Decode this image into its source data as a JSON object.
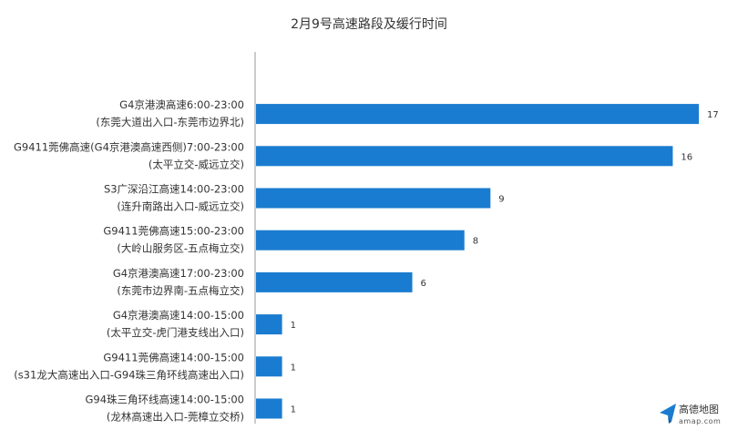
{
  "chart_data": {
    "type": "bar",
    "orientation": "horizontal",
    "title": "2月9号高速路段及缓行时间",
    "categories": [
      [
        "G4京港澳高速6:00-23:00",
        "(东莞大道出入口-东莞市边界北)"
      ],
      [
        "G9411莞佛高速(G4京港澳高速西侧)7:00-23:00",
        "(太平立交-威远立交)"
      ],
      [
        "S3广深沿江高速14:00-23:00",
        "(连升南路出入口-威远立交)"
      ],
      [
        "G9411莞佛高速15:00-23:00",
        "(大岭山服务区-五点梅立交)"
      ],
      [
        "G4京港澳高速17:00-23:00",
        "(东莞市边界南-五点梅立交)"
      ],
      [
        "G4京港澳高速14:00-15:00",
        "(太平立交-虎门港支线出入口)"
      ],
      [
        "G9411莞佛高速14:00-15:00",
        "(s31龙大高速出入口-G94珠三角环线高速出入口)"
      ],
      [
        "G94珠三角环线高速14:00-15:00",
        "(龙林高速出入口-莞樟立交桥)"
      ]
    ],
    "values": [
      17,
      16,
      9,
      8,
      6,
      1,
      1,
      1
    ],
    "xlim": [
      0,
      17
    ],
    "grid": false,
    "legend": "none",
    "bar_color": "#1a7cd0"
  },
  "logo": {
    "name": "高德地图",
    "domain": "amap.com",
    "icon": "paper-plane-icon",
    "color": "#1a7cd0"
  }
}
